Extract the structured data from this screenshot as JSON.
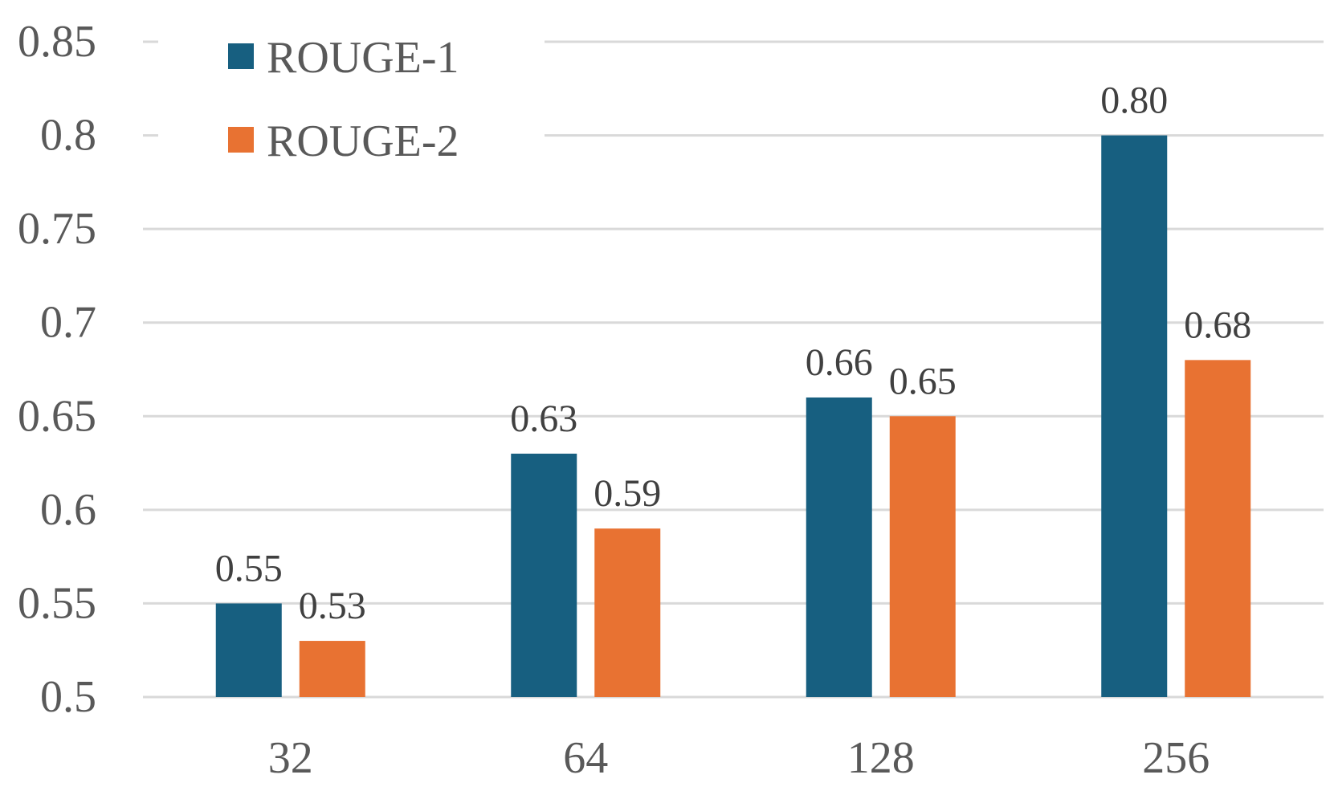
{
  "chart_data": {
    "type": "bar",
    "categories": [
      "32",
      "64",
      "128",
      "256"
    ],
    "series": [
      {
        "name": "ROUGE-1",
        "color": "#175f80",
        "values": [
          0.55,
          0.63,
          0.66,
          0.8
        ]
      },
      {
        "name": "ROUGE-2",
        "color": "#e87232",
        "values": [
          0.53,
          0.59,
          0.65,
          0.68
        ]
      }
    ],
    "data_labels": [
      [
        "0.55",
        "0.63",
        "0.66",
        "0.80"
      ],
      [
        "0.53",
        "0.59",
        "0.65",
        "0.68"
      ]
    ],
    "y_ticks": [
      {
        "value": 0.5,
        "label": "0.5"
      },
      {
        "value": 0.55,
        "label": "0.55"
      },
      {
        "value": 0.6,
        "label": "0.6"
      },
      {
        "value": 0.65,
        "label": "0.65"
      },
      {
        "value": 0.7,
        "label": "0.7"
      },
      {
        "value": 0.75,
        "label": "0.75"
      },
      {
        "value": 0.8,
        "label": "0.8"
      },
      {
        "value": 0.85,
        "label": "0.85"
      }
    ],
    "ylim": [
      0.5,
      0.85
    ],
    "title": "",
    "xlabel": "",
    "ylabel": "",
    "grid": true,
    "legend_position": "top-left"
  }
}
